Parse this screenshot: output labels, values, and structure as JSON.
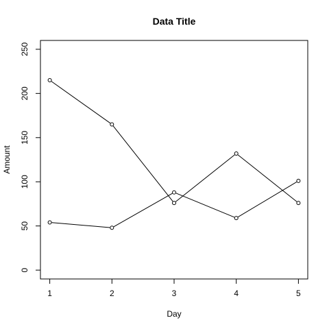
{
  "chart_data": {
    "type": "line",
    "title": "Data Title",
    "xlabel": "Day",
    "ylabel": "Amount",
    "xlim": [
      0.85,
      5.15
    ],
    "ylim": [
      -10,
      260
    ],
    "xticks": [
      1,
      2,
      3,
      4,
      5
    ],
    "yticks": [
      0,
      50,
      100,
      150,
      200,
      250
    ],
    "grid": false,
    "x": [
      1,
      2,
      3,
      4,
      5
    ],
    "series": [
      {
        "values": [
          215,
          165,
          76,
          132,
          76
        ],
        "color": "#000000",
        "marker": "open-circle"
      },
      {
        "values": [
          54,
          48,
          88,
          59,
          101
        ],
        "color": "#000000",
        "marker": "open-circle"
      }
    ]
  }
}
